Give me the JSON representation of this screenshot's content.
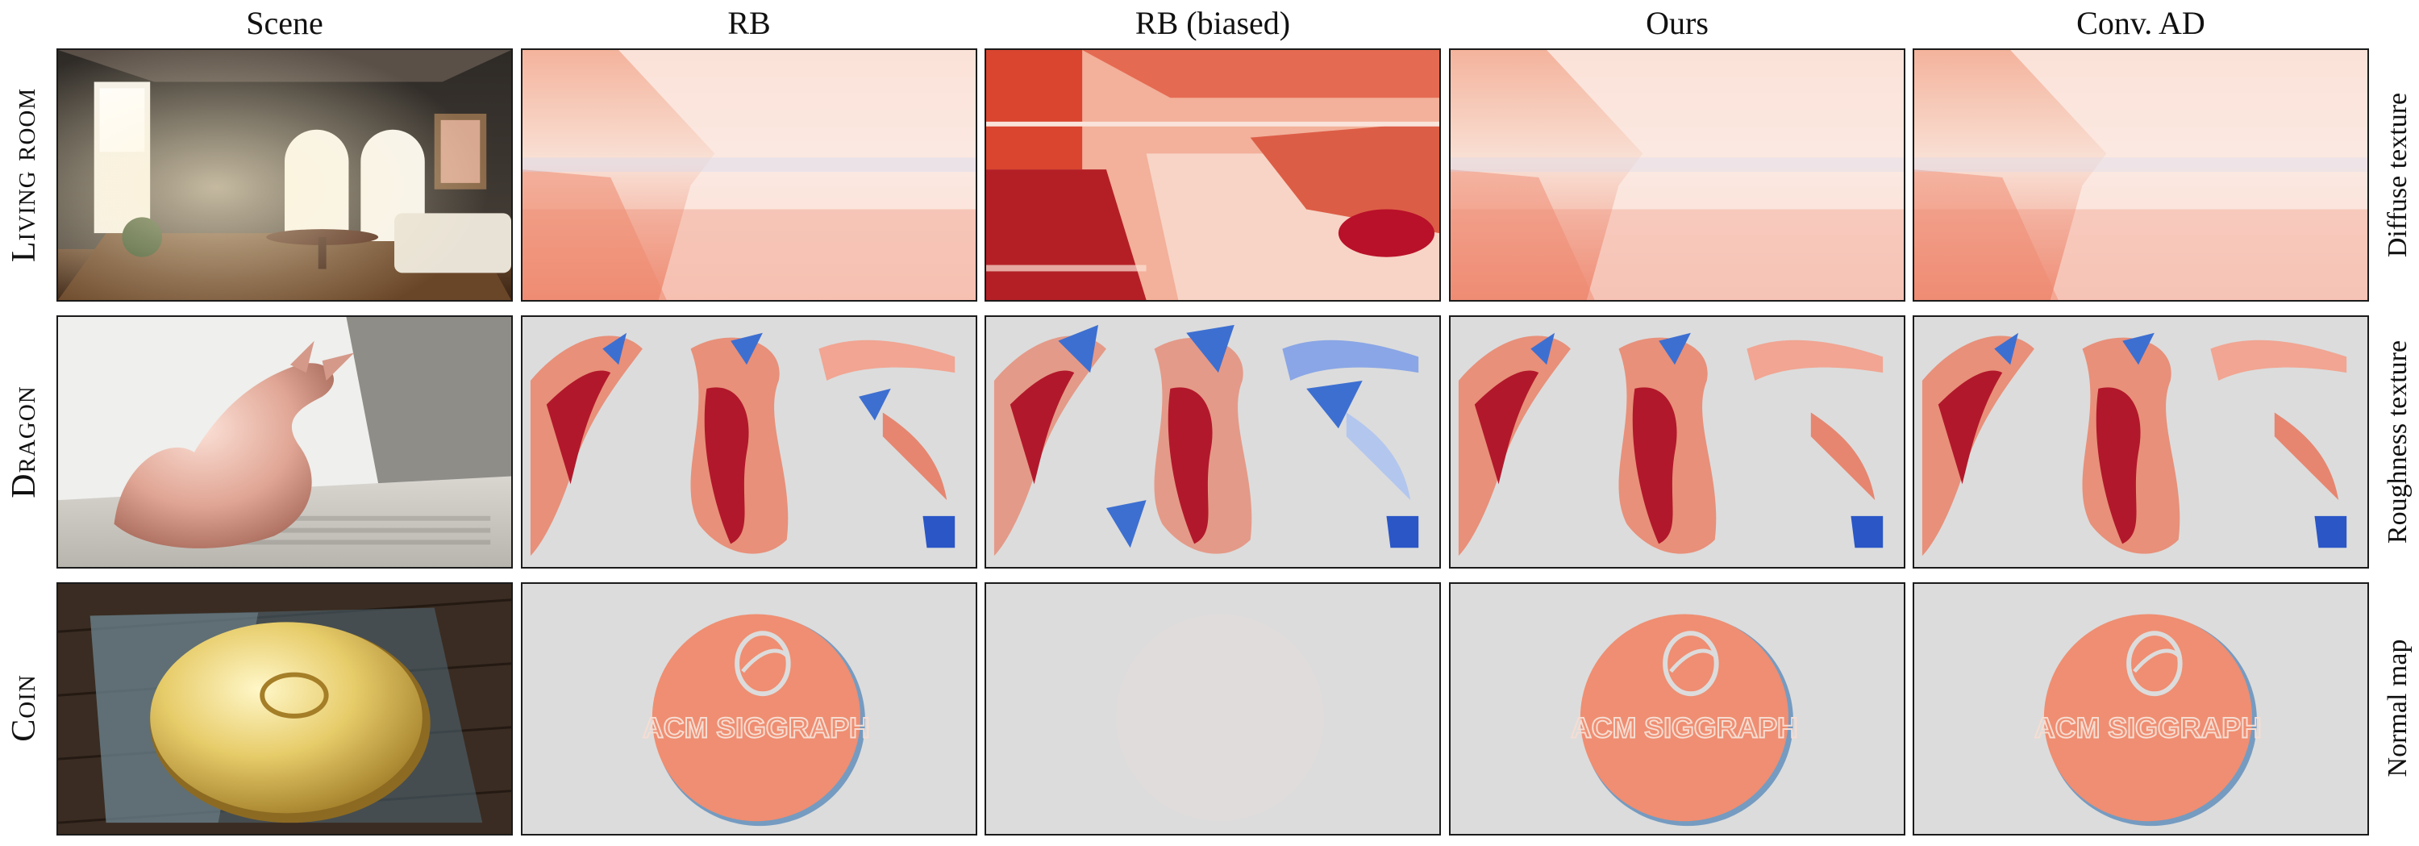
{
  "figure": {
    "columns": [
      "Scene",
      "RB",
      "RB (biased)",
      "Ours",
      "Conv. AD"
    ],
    "rows": [
      {
        "label": "Living room",
        "parameter": "Diffuse texture"
      },
      {
        "label": "Dragon",
        "parameter": "Roughness texture"
      },
      {
        "label": "Coin",
        "parameter": "Normal map"
      }
    ],
    "coin_text": "ACM SIGGRAPH"
  },
  "colors": {
    "positive": "#b2182b",
    "positive_light": "#f4a582",
    "negative": "#2166ac",
    "negative_light": "#92c5de",
    "neutral": "#dcdcdc",
    "frame": "#1b1b1b"
  },
  "icons": [
    "living-room-render",
    "dragon-render",
    "coin-render",
    "gradient-heatmap"
  ]
}
